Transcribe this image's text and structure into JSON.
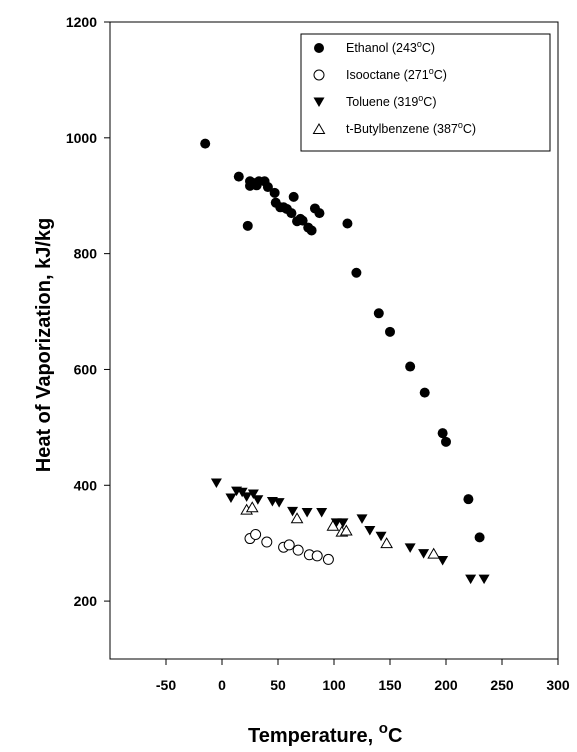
{
  "chart_data": {
    "type": "scatter",
    "title": "",
    "xlabel": "Temperature, ",
    "xlabel_sup": "o",
    "xlabel_unit": "C",
    "ylabel": "Heat of Vaporization, kJ/kg",
    "xlim": [
      -100,
      300
    ],
    "ylim": [
      100,
      1200
    ],
    "xticks": [
      -50,
      0,
      50,
      100,
      150,
      200,
      250,
      300
    ],
    "xtick_labels": [
      "-50",
      "0",
      "50",
      "100",
      "150",
      "200",
      "250",
      "300"
    ],
    "yticks": [
      200,
      400,
      600,
      800,
      1000,
      1200
    ],
    "grid": false,
    "legend_position": "top-right",
    "series": [
      {
        "name": "Ethanol (243°C)",
        "legend_main": "Ethanol (243",
        "legend_sup": "o",
        "legend_tail": "C)",
        "marker": "filled-circle",
        "color": "#000000",
        "x": [
          -15,
          15,
          23,
          25,
          25,
          28,
          31,
          33,
          38,
          41,
          47,
          48,
          52,
          55,
          58,
          62,
          64,
          67,
          70,
          72,
          77,
          80,
          83,
          87,
          112,
          120,
          140,
          150,
          168,
          181,
          197,
          200,
          220,
          230
        ],
        "y": [
          990,
          933,
          848,
          917,
          925,
          922,
          918,
          925,
          925,
          915,
          905,
          888,
          880,
          880,
          877,
          870,
          898,
          856,
          860,
          857,
          845,
          840,
          878,
          870,
          852,
          767,
          697,
          665,
          605,
          560,
          490,
          475,
          376,
          310
        ]
      },
      {
        "name": "Isooctane (271°C)",
        "legend_main": "Isooctane (271",
        "legend_sup": "o",
        "legend_tail": "C)",
        "marker": "open-circle",
        "color": "#000000",
        "x": [
          25,
          30,
          40,
          55,
          60,
          68,
          78,
          85,
          95
        ],
        "y": [
          308,
          315,
          302,
          293,
          297,
          288,
          280,
          278,
          272
        ]
      },
      {
        "name": "Toluene (319°C)",
        "legend_main": "Toluene (319",
        "legend_sup": "o",
        "legend_tail": "C)",
        "marker": "filled-triangle-down",
        "color": "#000000",
        "x": [
          -5,
          8,
          13,
          18,
          22,
          28,
          32,
          45,
          51,
          63,
          76,
          89,
          102,
          108,
          125,
          132,
          142,
          168,
          180,
          197,
          222,
          234
        ],
        "y": [
          404,
          378,
          390,
          388,
          380,
          385,
          375,
          372,
          370,
          355,
          353,
          353,
          335,
          335,
          342,
          322,
          312,
          292,
          282,
          270,
          238,
          238
        ]
      },
      {
        "name": "t-Butylbenzene (387°C)",
        "legend_main": "t-Butylbenzene (387",
        "legend_sup": "o",
        "legend_tail": "C)",
        "marker": "open-triangle-up",
        "color": "#000000",
        "x": [
          22,
          27,
          67,
          99,
          107,
          111,
          147,
          189
        ],
        "y": [
          358,
          362,
          343,
          330,
          320,
          322,
          300,
          282
        ]
      }
    ]
  }
}
